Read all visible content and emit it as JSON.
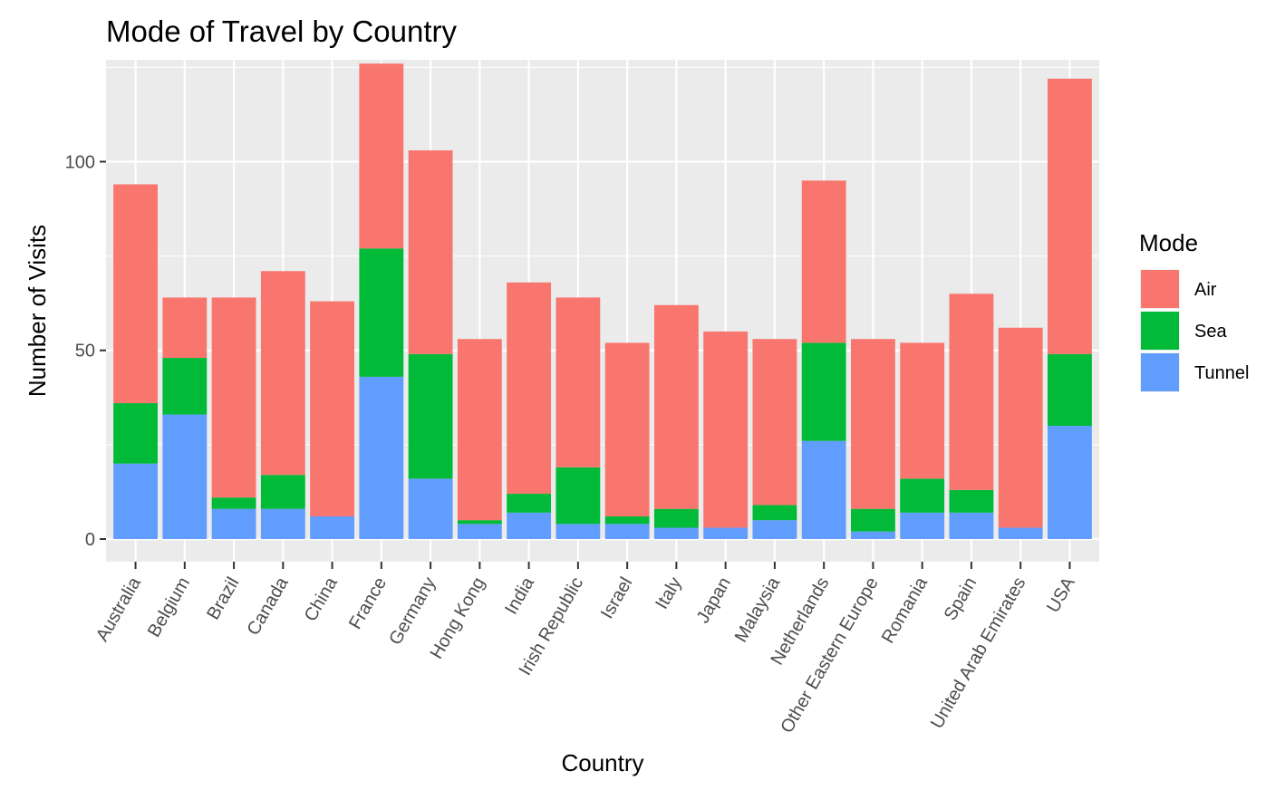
{
  "chart_data": {
    "type": "bar",
    "stacked": true,
    "title": "Mode of Travel by Country",
    "xlabel": "Country",
    "ylabel": "Number of Visits",
    "ylim": [
      -6,
      127
    ],
    "yticks": [
      0,
      50,
      100
    ],
    "grid": true,
    "legend": {
      "title": "Mode",
      "position": "right"
    },
    "categories": [
      "Australia",
      "Belgium",
      "Brazil",
      "Canada",
      "China",
      "France",
      "Germany",
      "Hong Kong",
      "India",
      "Irish Republic",
      "Israel",
      "Italy",
      "Japan",
      "Malaysia",
      "Netherlands",
      "Other Eastern Europe",
      "Romania",
      "Spain",
      "United Arab Emirates",
      "USA"
    ],
    "series": [
      {
        "name": "Tunnel",
        "color": "#619CFF",
        "values": [
          20,
          33,
          8,
          8,
          6,
          43,
          16,
          4,
          7,
          4,
          4,
          3,
          3,
          5,
          26,
          2,
          7,
          7,
          3,
          30
        ]
      },
      {
        "name": "Sea",
        "color": "#00BA38",
        "values": [
          16,
          15,
          3,
          9,
          0,
          34,
          33,
          1,
          5,
          15,
          2,
          5,
          0,
          4,
          26,
          6,
          9,
          6,
          0,
          19
        ]
      },
      {
        "name": "Air",
        "color": "#F8766D",
        "values": [
          58,
          16,
          53,
          54,
          57,
          49,
          54,
          48,
          56,
          45,
          46,
          54,
          52,
          44,
          43,
          45,
          36,
          52,
          53,
          73
        ]
      }
    ],
    "legend_order": [
      "Air",
      "Sea",
      "Tunnel"
    ]
  }
}
